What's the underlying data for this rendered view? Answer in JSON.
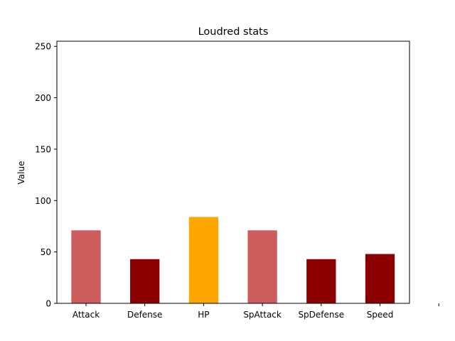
{
  "chart_data": {
    "type": "bar",
    "title": "Loudred stats",
    "xlabel": "",
    "ylabel": "Value",
    "categories": [
      "Attack",
      "Defense",
      "HP",
      "SpAttack",
      "SpDefense",
      "Speed"
    ],
    "values": [
      71,
      43,
      84,
      71,
      43,
      48
    ],
    "colors": [
      "#cd5c5c",
      "#8b0000",
      "#ffa500",
      "#cd5c5c",
      "#8b0000",
      "#8b0000"
    ],
    "ylim": [
      0,
      255
    ],
    "yticks": [
      0,
      50,
      100,
      150,
      200,
      250
    ],
    "grid": false
  }
}
